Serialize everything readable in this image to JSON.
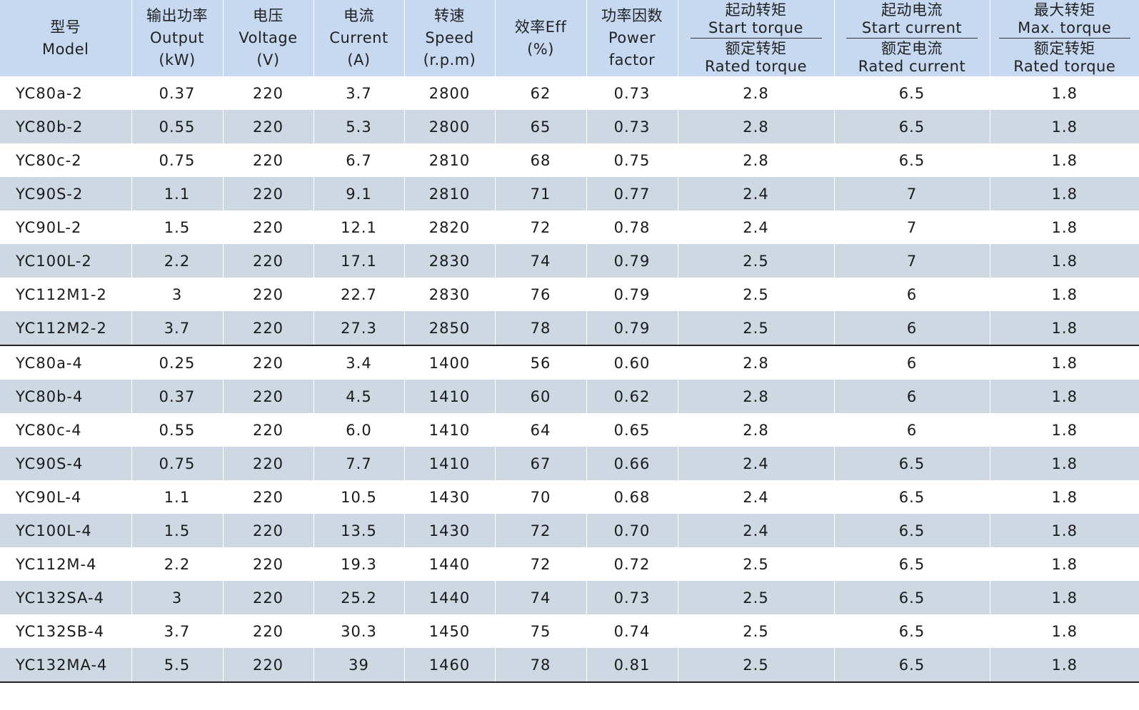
{
  "headers": [
    {
      "zh": "型号",
      "en": [
        "Model"
      ]
    },
    {
      "zh": "输出功率",
      "en": [
        "Output",
        "(kW)"
      ]
    },
    {
      "zh": "电压",
      "en": [
        "Voltage",
        "(V)"
      ]
    },
    {
      "zh": "电流",
      "en": [
        "Current",
        "(A)"
      ]
    },
    {
      "zh": "转速",
      "en": [
        "Speed",
        "(r.p.m)"
      ]
    },
    {
      "zh": "效率Eff",
      "en": [
        "(%)"
      ]
    },
    {
      "zh": "功率因数",
      "en": [
        "Power",
        "factor"
      ]
    },
    {
      "num_zh": "起动转矩",
      "num_en": "Start torque",
      "den_zh": "额定转矩",
      "den_en": "Rated torque"
    },
    {
      "num_zh": "起动电流",
      "num_en": "Start current",
      "den_zh": "额定电流",
      "den_en": "Rated current"
    },
    {
      "num_zh": "最大转矩",
      "num_en": "Max. torque",
      "den_zh": "额定转矩",
      "den_en": "Rated torque"
    }
  ],
  "rows": [
    [
      "YC80a-2",
      "0.37",
      "220",
      "3.7",
      "2800",
      "62",
      "0.73",
      "2.8",
      "6.5",
      "1.8"
    ],
    [
      "YC80b-2",
      "0.55",
      "220",
      "5.3",
      "2800",
      "65",
      "0.73",
      "2.8",
      "6.5",
      "1.8"
    ],
    [
      "YC80c-2",
      "0.75",
      "220",
      "6.7",
      "2810",
      "68",
      "0.75",
      "2.8",
      "6.5",
      "1.8"
    ],
    [
      "YC90S-2",
      "1.1",
      "220",
      "9.1",
      "2810",
      "71",
      "0.77",
      "2.4",
      "7",
      "1.8"
    ],
    [
      "YC90L-2",
      "1.5",
      "220",
      "12.1",
      "2820",
      "72",
      "0.78",
      "2.4",
      "7",
      "1.8"
    ],
    [
      "YC100L-2",
      "2.2",
      "220",
      "17.1",
      "2830",
      "74",
      "0.79",
      "2.5",
      "7",
      "1.8"
    ],
    [
      "YC112M1-2",
      "3",
      "220",
      "22.7",
      "2830",
      "76",
      "0.79",
      "2.5",
      "6",
      "1.8"
    ],
    [
      "YC112M2-2",
      "3.7",
      "220",
      "27.3",
      "2850",
      "78",
      "0.79",
      "2.5",
      "6",
      "1.8"
    ],
    [
      "YC80a-4",
      "0.25",
      "220",
      "3.4",
      "1400",
      "56",
      "0.60",
      "2.8",
      "6",
      "1.8"
    ],
    [
      "YC80b-4",
      "0.37",
      "220",
      "4.5",
      "1410",
      "60",
      "0.62",
      "2.8",
      "6",
      "1.8"
    ],
    [
      "YC80c-4",
      "0.55",
      "220",
      "6.0",
      "1410",
      "64",
      "0.65",
      "2.8",
      "6",
      "1.8"
    ],
    [
      "YC90S-4",
      "0.75",
      "220",
      "7.7",
      "1410",
      "67",
      "0.66",
      "2.4",
      "6.5",
      "1.8"
    ],
    [
      "YC90L-4",
      "1.1",
      "220",
      "10.5",
      "1430",
      "70",
      "0.68",
      "2.4",
      "6.5",
      "1.8"
    ],
    [
      "YC100L-4",
      "1.5",
      "220",
      "13.5",
      "1430",
      "72",
      "0.70",
      "2.4",
      "6.5",
      "1.8"
    ],
    [
      "YC112M-4",
      "2.2",
      "220",
      "19.3",
      "1440",
      "72",
      "0.72",
      "2.5",
      "6.5",
      "1.8"
    ],
    [
      "YC132SA-4",
      "3",
      "220",
      "25.2",
      "1440",
      "74",
      "0.73",
      "2.5",
      "6.5",
      "1.8"
    ],
    [
      "YC132SB-4",
      "3.7",
      "220",
      "30.3",
      "1450",
      "75",
      "0.74",
      "2.5",
      "6.5",
      "1.8"
    ],
    [
      "YC132MA-4",
      "5.5",
      "220",
      "39",
      "1460",
      "78",
      "0.81",
      "2.5",
      "6.5",
      "1.8"
    ]
  ],
  "colors": {
    "header_bg": "#c6d9f1",
    "shaded_row_bg": "#cdd8e2",
    "row_bg": "#ffffff"
  }
}
